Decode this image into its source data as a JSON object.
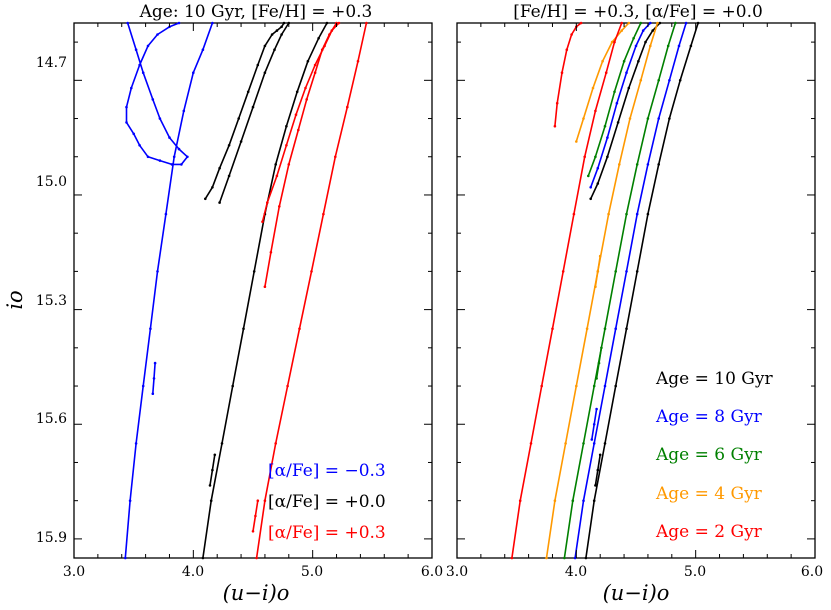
{
  "chart_data": [
    {
      "type": "line",
      "title": "Age: 10 Gyr, [Fe/H] = +0.3",
      "xlabel": "(u−i)o",
      "ylabel": "io",
      "xlim": [
        3.0,
        6.0
      ],
      "ylim": [
        15.95,
        14.55
      ],
      "x_ticks": [
        "3.0",
        "4.0",
        "5.0",
        "6.0"
      ],
      "y_ticks": [
        "14.7",
        "15.0",
        "15.3",
        "15.6",
        "15.9"
      ],
      "legend": [
        {
          "label": "[α/Fe] = −0.3",
          "color": "#0000ff"
        },
        {
          "label": "[α/Fe] = +0.0",
          "color": "#000000"
        },
        {
          "label": "[α/Fe] = +0.3",
          "color": "#ff0000"
        }
      ],
      "series": [
        {
          "name": "[α/Fe] = −0.3",
          "color": "#0000ff",
          "rgb": {
            "x": [
              3.43,
              3.47,
              3.52,
              3.58,
              3.64,
              3.7,
              3.77,
              3.84,
              3.92,
              4.0,
              4.08,
              4.16
            ],
            "y": [
              15.95,
              15.8,
              15.65,
              15.5,
              15.35,
              15.2,
              15.05,
              14.9,
              14.78,
              14.68,
              14.62,
              14.55
            ]
          },
          "hook": {
            "x": [
              3.45,
              3.52,
              3.58,
              3.66,
              3.72,
              3.8,
              3.88,
              3.95,
              3.9,
              3.82,
              3.72,
              3.62,
              3.55,
              3.5,
              3.44,
              3.44,
              3.48,
              3.55,
              3.62,
              3.7,
              3.8,
              3.88
            ],
            "y": [
              14.55,
              14.62,
              14.68,
              14.75,
              14.8,
              14.85,
              14.88,
              14.9,
              14.92,
              14.92,
              14.91,
              14.9,
              14.87,
              14.84,
              14.81,
              14.77,
              14.72,
              14.66,
              14.61,
              14.58,
              14.56,
              14.55
            ]
          },
          "hb": {
            "x": [
              3.66,
              3.67,
              3.68
            ],
            "y": [
              15.52,
              15.48,
              15.44
            ]
          }
        },
        {
          "name": "[α/Fe] = +0.0",
          "color": "#000000",
          "rgb": {
            "x": [
              4.08,
              4.15,
              4.24,
              4.33,
              4.42,
              4.51,
              4.6,
              4.69,
              4.78,
              4.87,
              4.96,
              5.05,
              5.12
            ],
            "y": [
              15.95,
              15.8,
              15.65,
              15.5,
              15.35,
              15.2,
              15.05,
              14.92,
              14.82,
              14.73,
              14.65,
              14.59,
              14.55
            ]
          },
          "hook": {
            "x": [
              4.1,
              4.16,
              4.22,
              4.3,
              4.38,
              4.46,
              4.54,
              4.6,
              4.66,
              4.7,
              4.74,
              4.76
            ],
            "y": [
              15.01,
              14.98,
              14.93,
              14.87,
              14.8,
              14.73,
              14.66,
              14.61,
              14.58,
              14.57,
              14.56,
              14.55
            ]
          },
          "hook2": {
            "x": [
              4.22,
              4.3,
              4.4,
              4.5,
              4.6,
              4.68,
              4.74,
              4.8
            ],
            "y": [
              15.02,
              14.95,
              14.86,
              14.77,
              14.68,
              14.62,
              14.58,
              14.55
            ]
          },
          "hb": {
            "x": [
              4.14,
              4.16,
              4.18
            ],
            "y": [
              15.76,
              15.72,
              15.68
            ]
          }
        },
        {
          "name": "[α/Fe] = +0.3",
          "color": "#ff0000",
          "rgb": {
            "x": [
              4.53,
              4.6,
              4.69,
              4.79,
              4.89,
              4.99,
              5.09,
              5.19,
              5.29,
              5.38,
              5.45
            ],
            "y": [
              15.95,
              15.8,
              15.65,
              15.5,
              15.35,
              15.2,
              15.05,
              14.9,
              14.77,
              14.65,
              14.55
            ]
          },
          "hook": {
            "x": [
              4.6,
              4.65,
              4.72,
              4.8,
              4.88,
              4.95,
              5.02,
              5.08,
              5.14,
              5.2
            ],
            "y": [
              15.24,
              15.15,
              15.03,
              14.92,
              14.83,
              14.75,
              14.68,
              14.62,
              14.58,
              14.55
            ]
          },
          "hook2": {
            "x": [
              4.58,
              4.62,
              4.7,
              4.78,
              4.86,
              4.94,
              5.02,
              5.1,
              5.16,
              5.22
            ],
            "y": [
              15.07,
              15.02,
              14.95,
              14.87,
              14.79,
              14.72,
              14.66,
              14.61,
              14.57,
              14.55
            ]
          },
          "hb": {
            "x": [
              4.5,
              4.52,
              4.54
            ],
            "y": [
              15.88,
              15.84,
              15.8
            ]
          }
        }
      ]
    },
    {
      "type": "line",
      "title": "[Fe/H] = +0.3, [α/Fe] = +0.0",
      "xlabel": "(u−i)o",
      "ylabel": "io",
      "xlim": [
        3.0,
        6.0
      ],
      "ylim": [
        15.95,
        14.55
      ],
      "x_ticks": [
        "3.0",
        "4.0",
        "5.0",
        "6.0"
      ],
      "legend": [
        {
          "label": "Age = 10 Gyr",
          "color": "#000000"
        },
        {
          "label": "Age = 8 Gyr",
          "color": "#0000ff"
        },
        {
          "label": "Age = 6 Gyr",
          "color": "#008000"
        },
        {
          "label": "Age = 4 Gyr",
          "color": "#ff9900"
        },
        {
          "label": "Age = 2 Gyr",
          "color": "#ff0000"
        }
      ],
      "series": [
        {
          "name": "Age = 10 Gyr",
          "color": "#000000",
          "rgb": {
            "x": [
              4.08,
              4.15,
              4.24,
              4.33,
              4.42,
              4.51,
              4.6,
              4.69,
              4.78,
              4.87,
              4.96,
              5.02
            ],
            "y": [
              15.95,
              15.8,
              15.65,
              15.5,
              15.35,
              15.2,
              15.05,
              14.92,
              14.8,
              14.7,
              14.61,
              14.55
            ]
          },
          "hook": {
            "x": [
              4.12,
              4.18,
              4.26,
              4.35,
              4.44,
              4.52,
              4.58,
              4.64,
              4.7
            ],
            "y": [
              15.01,
              14.97,
              14.9,
              14.81,
              14.72,
              14.65,
              14.6,
              14.57,
              14.55
            ]
          },
          "hb": {
            "x": [
              4.16,
              4.18,
              4.2
            ],
            "y": [
              15.76,
              15.72,
              15.68
            ]
          }
        },
        {
          "name": "Age = 8 Gyr",
          "color": "#0000ff",
          "rgb": {
            "x": [
              3.99,
              4.06,
              4.15,
              4.24,
              4.33,
              4.42,
              4.51,
              4.6,
              4.69,
              4.78,
              4.86,
              4.92
            ],
            "y": [
              15.95,
              15.8,
              15.65,
              15.5,
              15.35,
              15.2,
              15.05,
              14.92,
              14.8,
              14.7,
              14.61,
              14.55
            ]
          },
          "hook": {
            "x": [
              4.12,
              4.18,
              4.26,
              4.34,
              4.42,
              4.5,
              4.56,
              4.62
            ],
            "y": [
              14.98,
              14.93,
              14.85,
              14.76,
              14.68,
              14.61,
              14.57,
              14.55
            ]
          },
          "hb": {
            "x": [
              4.13,
              4.15,
              4.17
            ],
            "y": [
              15.64,
              15.6,
              15.56
            ]
          }
        },
        {
          "name": "Age = 6 Gyr",
          "color": "#008000",
          "rgb": {
            "x": [
              3.9,
              3.97,
              4.06,
              4.15,
              4.24,
              4.33,
              4.42,
              4.51,
              4.6,
              4.69,
              4.77,
              4.83
            ],
            "y": [
              15.95,
              15.8,
              15.65,
              15.5,
              15.35,
              15.2,
              15.05,
              14.92,
              14.8,
              14.7,
              14.61,
              14.55
            ]
          },
          "hook": {
            "x": [
              4.1,
              4.16,
              4.24,
              4.32,
              4.4,
              4.48,
              4.54
            ],
            "y": [
              14.95,
              14.9,
              14.82,
              14.73,
              14.65,
              14.59,
              14.55
            ]
          },
          "hb": {
            "x": [
              4.17,
              4.19,
              4.21
            ],
            "y": [
              15.48,
              15.44,
              15.4
            ]
          }
        },
        {
          "name": "Age = 4 Gyr",
          "color": "#ff9900",
          "rgb": {
            "x": [
              3.75,
              3.82,
              3.91,
              4.0,
              4.09,
              4.18,
              4.27,
              4.36,
              4.45,
              4.54,
              4.62,
              4.68
            ],
            "y": [
              15.95,
              15.8,
              15.65,
              15.5,
              15.35,
              15.2,
              15.05,
              14.92,
              14.8,
              14.7,
              14.61,
              14.55
            ]
          },
          "hook": {
            "x": [
              4.0,
              4.06,
              4.14,
              4.22,
              4.3,
              4.38,
              4.44
            ],
            "y": [
              14.86,
              14.8,
              14.72,
              14.65,
              14.6,
              14.57,
              14.55
            ]
          },
          "hb": {
            "x": [
              4.16,
              4.18,
              4.2
            ],
            "y": [
              15.24,
              15.2,
              15.16
            ]
          }
        },
        {
          "name": "Age = 2 Gyr",
          "color": "#ff0000",
          "rgb": {
            "x": [
              3.46,
              3.53,
              3.62,
              3.71,
              3.8,
              3.89,
              3.98,
              4.07,
              4.16,
              4.25,
              4.32,
              4.38
            ],
            "y": [
              15.95,
              15.8,
              15.65,
              15.5,
              15.35,
              15.2,
              15.05,
              14.9,
              14.78,
              14.68,
              14.6,
              14.55
            ]
          },
          "hook": {
            "x": [
              3.82,
              3.84,
              3.88,
              3.92,
              3.96,
              4.0,
              4.04
            ],
            "y": [
              14.82,
              14.76,
              14.68,
              14.62,
              14.58,
              14.56,
              14.55
            ]
          }
        }
      ]
    }
  ]
}
